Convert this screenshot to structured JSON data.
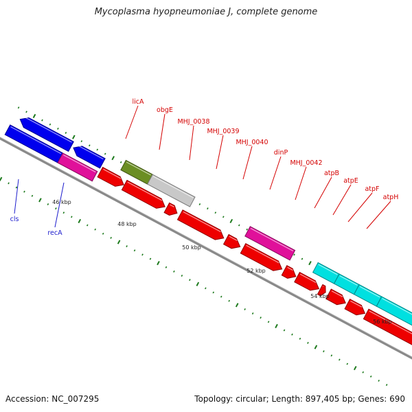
{
  "title": "Mycoplasma hyopneumoniae J, complete genome",
  "accession_label": "Accession: NC_007295",
  "summary_label": "Topology: circular; Length: 897,405 bp; Genes: 690",
  "colors": {
    "backbone": "#8a8a8a",
    "tick": "#1d7a1d",
    "red_label": "#d40000",
    "blue_label": "#1a1acc"
  },
  "kbp_labels": [
    "46 kbp",
    "48 kbp",
    "50 kbp",
    "52 kbp",
    "54 kbp",
    "56 kbp"
  ],
  "genes": [
    {
      "name": "cls",
      "color": "#0000ee",
      "label_color": "#1a1acc",
      "labeled": true
    },
    {
      "name": "recA",
      "color": "#e0109a",
      "label_color": "#1a1acc",
      "labeled": true
    },
    {
      "name": "licA",
      "color": "#6b8e23",
      "label_color": "#d40000",
      "labeled": true
    },
    {
      "name": "obgE",
      "color": "#c8c8c8",
      "label_color": "#d40000",
      "labeled": true
    },
    {
      "name": "MHJ_0038",
      "color": "#ee0000",
      "label_color": "#d40000",
      "labeled": true
    },
    {
      "name": "MHJ_0039",
      "color": "#ee0000",
      "label_color": "#d40000",
      "labeled": true
    },
    {
      "name": "MHJ_0040",
      "color": "#ee0000",
      "label_color": "#d40000",
      "labeled": true
    },
    {
      "name": "dinP",
      "color": "#e0109a",
      "label_color": "#d40000",
      "labeled": true
    },
    {
      "name": "MHJ_0042",
      "color": "#ee0000",
      "label_color": "#d40000",
      "labeled": true
    },
    {
      "name": "atpB",
      "color": "#00e0e0",
      "label_color": "#d40000",
      "labeled": true
    },
    {
      "name": "atpE",
      "color": "#00e0e0",
      "label_color": "#d40000",
      "labeled": true
    },
    {
      "name": "atpF",
      "color": "#00e0e0",
      "label_color": "#d40000",
      "labeled": true
    },
    {
      "name": "atpH",
      "color": "#00e0e0",
      "label_color": "#d40000",
      "labeled": true
    }
  ]
}
